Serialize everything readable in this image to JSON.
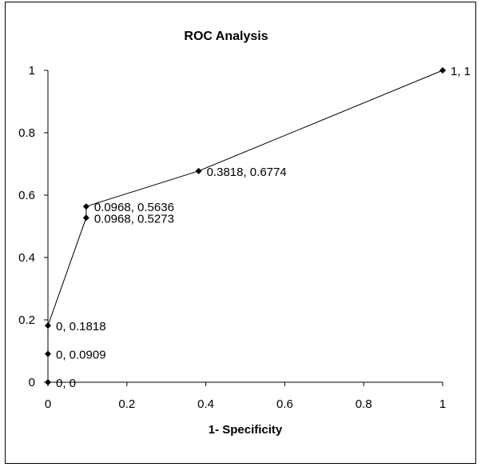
{
  "chart_data": {
    "type": "scatter",
    "title": "ROC Analysis",
    "xlabel": "1- Specificity",
    "ylabel": "",
    "xlim": [
      0,
      1
    ],
    "ylim": [
      0,
      1
    ],
    "xticks": [
      "0",
      "0.2",
      "0.4",
      "0.6",
      "0.8",
      "1"
    ],
    "yticks": [
      "0",
      "0.2",
      "0.4",
      "0.6",
      "0.8",
      "1"
    ],
    "grid": false,
    "legend": "none",
    "line_color": "#000000",
    "marker": "diamond",
    "series": [
      {
        "points": [
          {
            "x": 0,
            "y": 0,
            "label": "0, 0"
          },
          {
            "x": 0,
            "y": 0.0909,
            "label": "0, 0.0909"
          },
          {
            "x": 0,
            "y": 0.1818,
            "label": "0, 0.1818"
          },
          {
            "x": 0.0968,
            "y": 0.5273,
            "label": "0.0968, 0.5273"
          },
          {
            "x": 0.0968,
            "y": 0.5636,
            "label": "0.0968, 0.5636"
          },
          {
            "x": 0.3818,
            "y": 0.6774,
            "label": "0.3818, 0.6774"
          },
          {
            "x": 1,
            "y": 1,
            "label": "1, 1"
          }
        ]
      }
    ]
  }
}
